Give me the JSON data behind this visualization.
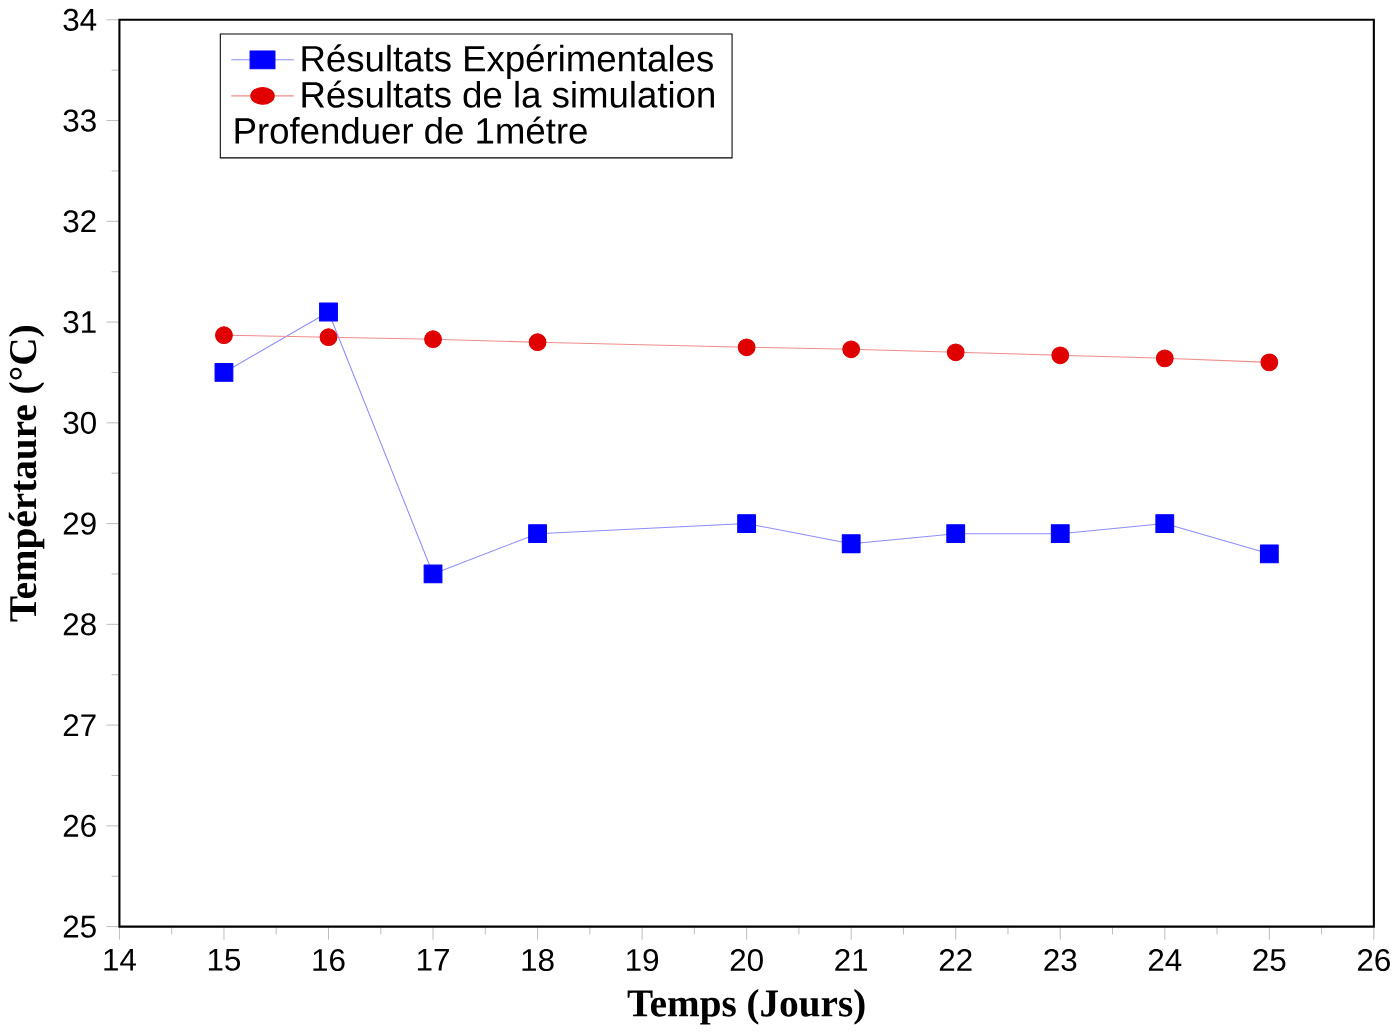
{
  "chart_data": {
    "type": "line",
    "xlabel": "Temps (Jours)",
    "ylabel": "Tempértaure (°C)",
    "x": [
      15,
      16,
      17,
      18,
      20,
      21,
      22,
      23,
      24,
      25
    ],
    "series": [
      {
        "name": "Résultats Expérimentales",
        "color": "#0000ff",
        "marker": "square",
        "values": [
          30.5,
          31.1,
          28.5,
          28.9,
          29.0,
          28.8,
          28.9,
          28.9,
          29.0,
          28.7
        ]
      },
      {
        "name": "Résultats de la simulation",
        "color": "#e00000",
        "marker": "circle",
        "values": [
          30.87,
          30.85,
          30.83,
          30.8,
          30.75,
          30.73,
          30.7,
          30.67,
          30.64,
          30.6
        ]
      }
    ],
    "annotations": [
      "Profenduer de 1métre"
    ],
    "xlim": [
      14,
      26
    ],
    "xticks": [
      14,
      15,
      16,
      17,
      18,
      19,
      20,
      21,
      22,
      23,
      24,
      25,
      26
    ],
    "ylim": [
      25,
      34
    ],
    "yticks": [
      25,
      26,
      27,
      28,
      29,
      30,
      31,
      32,
      33,
      34
    ],
    "legend": "top left",
    "grid": false
  }
}
